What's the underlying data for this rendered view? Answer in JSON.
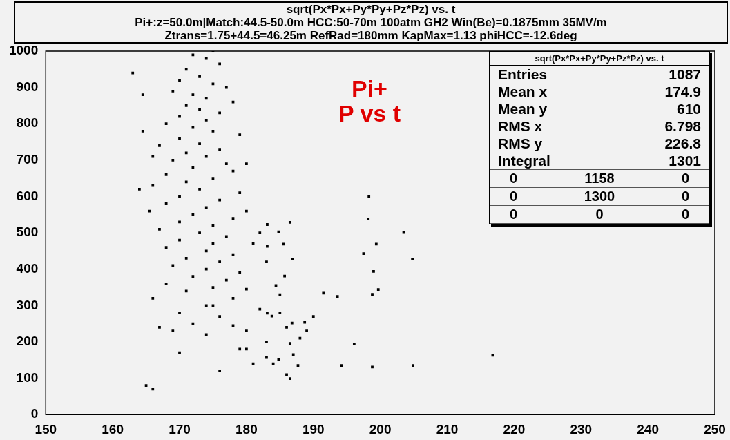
{
  "chart_data": {
    "type": "scatter",
    "title": "sqrt(Px*Px+Py*Py+Pz*Pz) vs. t",
    "subtitle": "Pi+:z=50.0m|Match:44.5-50.0m HCC:50-70m 100atm GH2 Win(Be)=0.1875mm 35MV/m",
    "annotations": [
      "Ztrans=1.75+44.5=46.25m RefRad=180mm KapMax=1.13 phiHCC=-12.6deg",
      "Pi+",
      "P vs t",
      "sqrt(Px*Px+Py*Py+Pz*Pz) vs. t",
      "Entries",
      "1087",
      "Mean x",
      "174.9",
      "Mean y",
      "610",
      "RMS x",
      "6.798",
      "RMS y",
      "226.8",
      "Integral",
      "1301",
      "0",
      "1158",
      "0",
      "0",
      "1300",
      "0",
      "0",
      "0",
      "0"
    ],
    "xlim": [
      150,
      250
    ],
    "xticks": [
      150,
      160,
      170,
      180,
      190,
      200,
      210,
      220,
      230,
      240,
      250
    ],
    "ylim": [
      0,
      1000
    ],
    "yticks": [
      0,
      100,
      200,
      300,
      400,
      500,
      600,
      700,
      800,
      900,
      1000
    ],
    "grid": false,
    "legend": false,
    "marker": "square",
    "series": [
      {
        "color": "#000000",
        "x": [
          172,
          174,
          175,
          176,
          171,
          173,
          170,
          175,
          177,
          169,
          172,
          174,
          178,
          171,
          173,
          176,
          170,
          174,
          168,
          172,
          175,
          179,
          170,
          173,
          167,
          176,
          171,
          174,
          169,
          177,
          172,
          180,
          178,
          168,
          175,
          171,
          166,
          173,
          179,
          170,
          176,
          168,
          174,
          180,
          172,
          178,
          170,
          175,
          167,
          173,
          182,
          177,
          170,
          175,
          181,
          168,
          174,
          178,
          171,
          176,
          183,
          169,
          174,
          179,
          172,
          177,
          168,
          175,
          180,
          171,
          178,
          166,
          174,
          182,
          170,
          176,
          185,
          172,
          178,
          167,
          180,
          174,
          186,
          183,
          170,
          179,
          187,
          184,
          176,
          186,
          189,
          191.5,
          193.6,
          194.2,
          196.1,
          197.5,
          198.3,
          199.4,
          199.0,
          198.8,
          199.7,
          198.8,
          203.5,
          204.8,
          204.9,
          216.8,
          188,
          190,
          165,
          166,
          164,
          163,
          164.5,
          164.5,
          166,
          165.5,
          180,
          181,
          175,
          169,
          185,
          183.1,
          186.5,
          184.8,
          185.5,
          183.1,
          186.9,
          185.7,
          184.4,
          183.1,
          183.8,
          186.8,
          188.7,
          186.5,
          183,
          184.8,
          187.7,
          186.5,
          198.2
        ],
        "values": [
          990,
          980,
          1000,
          965,
          950,
          930,
          920,
          910,
          900,
          890,
          880,
          870,
          860,
          850,
          840,
          830,
          820,
          810,
          800,
          790,
          780,
          770,
          760,
          745,
          740,
          730,
          720,
          710,
          700,
          690,
          680,
          690,
          670,
          660,
          650,
          640,
          630,
          620,
          610,
          600,
          590,
          580,
          570,
          560,
          550,
          540,
          530,
          520,
          510,
          500,
          500,
          490,
          480,
          470,
          470,
          460,
          450,
          440,
          430,
          420,
          420,
          410,
          400,
          390,
          380,
          370,
          360,
          350,
          345,
          340,
          320,
          320,
          300,
          290,
          280,
          270,
          280,
          250,
          245,
          240,
          230,
          220,
          240,
          200,
          170,
          180,
          165,
          140,
          120,
          110,
          230,
          334,
          325,
          135,
          194,
          443,
          600,
          469,
          394,
          131,
          344,
          331,
          501,
          428,
          135,
          163,
          210,
          270,
          80,
          70,
          620,
          940,
          880,
          780,
          710,
          560,
          180,
          140,
          300,
          230,
          330,
          523,
          529,
          503,
          469,
          463,
          428,
          381,
          355,
          279,
          271,
          252,
          254,
          196,
          157,
          151,
          135,
          99,
          538
        ]
      }
    ]
  }
}
